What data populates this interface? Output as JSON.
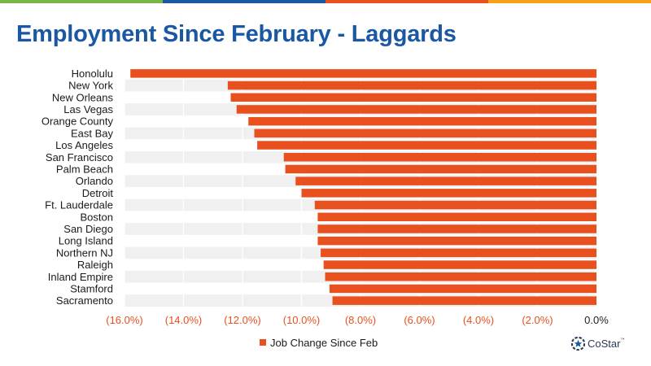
{
  "brand_colors": [
    "#7ab648",
    "#1b58a4",
    "#e8501e",
    "#f6a21b"
  ],
  "title": "Employment Since February - Laggards",
  "chart_data": {
    "type": "bar",
    "orientation": "horizontal",
    "categories": [
      "Honolulu",
      "New York",
      "New Orleans",
      "Las Vegas",
      "Orange County",
      "East Bay",
      "Los Angeles",
      "San Francisco",
      "Palm Beach",
      "Orlando",
      "Detroit",
      "Ft. Lauderdale",
      "Boston",
      "San Diego",
      "Long Island",
      "Northern NJ",
      "Raleigh",
      "Inland Empire",
      "Stamford",
      "Sacramento"
    ],
    "series": [
      {
        "name": "Job Change Since Feb",
        "color": "#e8501e",
        "values": [
          -15.8,
          -12.5,
          -12.4,
          -12.2,
          -11.8,
          -11.6,
          -11.5,
          -10.6,
          -10.55,
          -10.2,
          -10.0,
          -9.55,
          -9.45,
          -9.45,
          -9.45,
          -9.35,
          -9.25,
          -9.2,
          -9.05,
          -8.95
        ]
      }
    ],
    "xlim": [
      -16,
      0
    ],
    "x_ticks": [
      -16,
      -14,
      -12,
      -10,
      -8,
      -6,
      -4,
      -2,
      0
    ],
    "x_tick_labels": [
      "(16.0%)",
      "(14.0%)",
      "(12.0%)",
      "(10.0%)",
      "(8.0%)",
      "(6.0%)",
      "(4.0%)",
      "(2.0%)",
      "0.0%"
    ],
    "negative_tick_color": "#e8501e",
    "zero_tick_color": "#222222",
    "row_band_color": "#f0f0f0",
    "grid": true,
    "legend_position": "bottom"
  },
  "logo": {
    "text": "CoStar",
    "tm": "™",
    "icon": "costar-star-icon"
  }
}
